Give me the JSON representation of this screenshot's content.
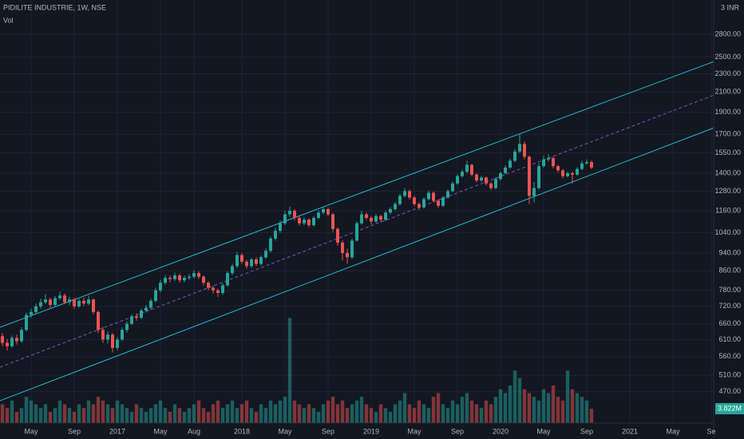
{
  "chart_data": {
    "type": "candlestick",
    "title": "PIDILITE INDUSTRIE, 1W, NSE",
    "volume_title": "Vol",
    "currency_label": "3 INR",
    "log_scale": true,
    "grid": true,
    "up_color": "#26a69a",
    "down_color": "#ef5350",
    "ylim": [
      402,
      3325
    ],
    "yticks": [
      {
        "value": 470,
        "label": "470.00"
      },
      {
        "value": 510,
        "label": "510.00"
      },
      {
        "value": 560,
        "label": "560.00"
      },
      {
        "value": 610,
        "label": "610.00"
      },
      {
        "value": 660,
        "label": "660.00"
      },
      {
        "value": 720,
        "label": "720.00"
      },
      {
        "value": 780,
        "label": "780.00"
      },
      {
        "value": 860,
        "label": "860.00"
      },
      {
        "value": 940,
        "label": "940.00"
      },
      {
        "value": 1040,
        "label": "1040.00"
      },
      {
        "value": 1160,
        "label": "1160.00"
      },
      {
        "value": 1280,
        "label": "1280.00"
      },
      {
        "value": 1400,
        "label": "1400.00"
      },
      {
        "value": 1550,
        "label": "1550.00"
      },
      {
        "value": 1700,
        "label": "1700.00"
      },
      {
        "value": 1900,
        "label": "1900.00"
      },
      {
        "value": 2100,
        "label": "2100.00"
      },
      {
        "value": 2300,
        "label": "2300.00"
      },
      {
        "value": 2500,
        "label": "2500.00"
      },
      {
        "value": 2800,
        "label": "2800.00"
      }
    ],
    "categories": [
      null,
      null,
      null,
      null,
      null,
      null,
      "May",
      null,
      null,
      null,
      null,
      null,
      null,
      null,
      null,
      "Sep",
      null,
      null,
      null,
      null,
      null,
      null,
      null,
      null,
      "2017",
      null,
      null,
      null,
      null,
      null,
      null,
      null,
      null,
      "May",
      null,
      null,
      null,
      null,
      null,
      null,
      "Aug",
      null,
      null,
      null,
      null,
      null,
      null,
      null,
      null,
      null,
      "2018",
      null,
      null,
      null,
      null,
      null,
      null,
      null,
      null,
      "May",
      null,
      null,
      null,
      null,
      null,
      null,
      null,
      null,
      "Sep",
      null,
      null,
      null,
      null,
      null,
      null,
      null,
      null,
      "2019",
      null,
      null,
      null,
      null,
      null,
      null,
      null,
      null,
      "May",
      null,
      null,
      null,
      null,
      null,
      null,
      null,
      null,
      "Sep",
      null,
      null,
      null,
      null,
      null,
      null,
      null,
      null,
      "2020",
      null,
      null,
      null,
      null,
      null,
      null,
      null,
      null,
      "May",
      null,
      null,
      null,
      null,
      null,
      null,
      null,
      null,
      "Sep",
      null,
      null,
      null,
      null,
      null,
      null,
      null,
      null,
      "2021",
      null,
      null,
      null,
      null,
      null,
      null,
      null,
      null,
      "May",
      null,
      null,
      null,
      null,
      null,
      null,
      null,
      "Se"
    ],
    "open": [
      620,
      600,
      590,
      615,
      605,
      640,
      690,
      700,
      720,
      735,
      745,
      725,
      750,
      760,
      735,
      745,
      720,
      740,
      730,
      745,
      700,
      640,
      610,
      625,
      585,
      610,
      640,
      660,
      685,
      680,
      705,
      715,
      740,
      780,
      810,
      830,
      825,
      840,
      820,
      830,
      835,
      850,
      835,
      810,
      790,
      780,
      770,
      800,
      850,
      880,
      930,
      900,
      880,
      910,
      890,
      920,
      950,
      1010,
      1050,
      1090,
      1140,
      1160,
      1120,
      1090,
      1110,
      1080,
      1120,
      1150,
      1170,
      1140,
      1060,
      990,
      940,
      920,
      1000,
      1090,
      1140,
      1120,
      1100,
      1130,
      1110,
      1150,
      1170,
      1200,
      1250,
      1280,
      1240,
      1200,
      1180,
      1230,
      1270,
      1220,
      1190,
      1240,
      1280,
      1330,
      1380,
      1410,
      1460,
      1390,
      1350,
      1370,
      1330,
      1300,
      1360,
      1400,
      1440,
      1490,
      1560,
      1620,
      1520,
      1250,
      1300,
      1450,
      1500,
      1510,
      1450,
      1420,
      1380,
      1400,
      1390,
      1430,
      1470,
      1480,
      null,
      null,
      null,
      null,
      null,
      null,
      null,
      null,
      null,
      null,
      null,
      null,
      null,
      null,
      null,
      null,
      null,
      null,
      null,
      null,
      null,
      null,
      null,
      null,
      null
    ],
    "high": [
      630,
      612,
      622,
      625,
      648,
      698,
      712,
      730,
      748,
      765,
      752,
      758,
      775,
      768,
      755,
      750,
      748,
      752,
      760,
      748,
      705,
      650,
      635,
      630,
      618,
      648,
      668,
      692,
      695,
      712,
      725,
      748,
      790,
      822,
      842,
      840,
      852,
      848,
      840,
      846,
      862,
      858,
      840,
      816,
      798,
      786,
      808,
      858,
      892,
      945,
      940,
      908,
      918,
      920,
      928,
      962,
      1020,
      1065,
      1105,
      1160,
      1185,
      1170,
      1128,
      1122,
      1118,
      1130,
      1162,
      1185,
      1178,
      1148,
      1068,
      1000,
      960,
      1010,
      1100,
      1160,
      1150,
      1130,
      1142,
      1138,
      1160,
      1182,
      1212,
      1262,
      1300,
      1290,
      1250,
      1210,
      1240,
      1285,
      1278,
      1228,
      1250,
      1292,
      1342,
      1392,
      1425,
      1490,
      1468,
      1400,
      1382,
      1378,
      1340,
      1372,
      1412,
      1455,
      1505,
      1580,
      1700,
      1640,
      1530,
      1340,
      1470,
      1530,
      1540,
      1520,
      1462,
      1430,
      1412,
      1412,
      1442,
      1490,
      1500,
      1490,
      null,
      null,
      null,
      null,
      null,
      null,
      null,
      null,
      null,
      null,
      null,
      null,
      null,
      null,
      null,
      null,
      null,
      null,
      null,
      null,
      null,
      null,
      null,
      null,
      null
    ],
    "low": [
      590,
      578,
      585,
      595,
      600,
      635,
      680,
      692,
      712,
      728,
      715,
      720,
      742,
      728,
      725,
      712,
      715,
      722,
      725,
      692,
      630,
      600,
      598,
      572,
      578,
      605,
      632,
      655,
      670,
      675,
      698,
      708,
      735,
      772,
      802,
      812,
      818,
      810,
      812,
      822,
      828,
      826,
      800,
      780,
      768,
      755,
      762,
      795,
      842,
      872,
      890,
      870,
      872,
      880,
      882,
      912,
      942,
      1000,
      1040,
      1080,
      1125,
      1105,
      1078,
      1080,
      1068,
      1072,
      1112,
      1140,
      1130,
      1045,
      975,
      905,
      890,
      912,
      995,
      1082,
      1108,
      1085,
      1092,
      1098,
      1102,
      1140,
      1162,
      1192,
      1240,
      1228,
      1188,
      1165,
      1172,
      1222,
      1210,
      1178,
      1182,
      1232,
      1272,
      1322,
      1370,
      1400,
      1378,
      1338,
      1340,
      1318,
      1288,
      1292,
      1350,
      1392,
      1430,
      1480,
      1548,
      1500,
      1200,
      1210,
      1290,
      1440,
      1485,
      1435,
      1405,
      1365,
      1370,
      1330,
      1382,
      1420,
      1462,
      1428,
      null,
      null,
      null,
      null,
      null,
      null,
      null,
      null,
      null,
      null,
      null,
      null,
      null,
      null,
      null,
      null,
      null,
      null,
      null,
      null,
      null,
      null,
      null,
      null,
      null
    ],
    "close": [
      600,
      590,
      615,
      605,
      640,
      690,
      700,
      720,
      735,
      745,
      725,
      750,
      760,
      735,
      745,
      720,
      740,
      730,
      745,
      700,
      640,
      610,
      625,
      585,
      610,
      640,
      660,
      685,
      680,
      705,
      715,
      740,
      780,
      810,
      830,
      825,
      840,
      820,
      830,
      835,
      850,
      835,
      810,
      790,
      780,
      770,
      800,
      850,
      880,
      930,
      900,
      880,
      910,
      890,
      920,
      950,
      1010,
      1050,
      1090,
      1140,
      1160,
      1120,
      1090,
      1110,
      1080,
      1120,
      1150,
      1170,
      1140,
      1060,
      990,
      940,
      920,
      1000,
      1090,
      1140,
      1120,
      1100,
      1130,
      1110,
      1150,
      1170,
      1200,
      1250,
      1280,
      1240,
      1200,
      1180,
      1230,
      1270,
      1220,
      1190,
      1240,
      1280,
      1330,
      1380,
      1410,
      1460,
      1390,
      1350,
      1370,
      1330,
      1300,
      1360,
      1400,
      1440,
      1490,
      1560,
      1620,
      1520,
      1250,
      1300,
      1450,
      1500,
      1510,
      1450,
      1420,
      1380,
      1400,
      1390,
      1430,
      1470,
      1480,
      1440,
      null,
      null,
      null,
      null,
      null,
      null,
      null,
      null,
      null,
      null,
      null,
      null,
      null,
      null,
      null,
      null,
      null,
      null,
      null,
      null,
      null,
      null,
      null,
      null,
      null
    ],
    "volume": [
      5,
      4,
      6,
      3,
      4,
      7,
      6,
      5,
      4,
      5,
      3,
      4,
      6,
      5,
      4,
      3,
      5,
      4,
      6,
      5,
      7,
      6,
      5,
      4,
      6,
      5,
      4,
      3,
      5,
      4,
      3,
      4,
      5,
      6,
      4,
      3,
      5,
      4,
      3,
      4,
      5,
      6,
      4,
      3,
      5,
      6,
      4,
      5,
      6,
      4,
      5,
      6,
      4,
      3,
      5,
      4,
      6,
      5,
      6,
      7,
      28,
      6,
      5,
      4,
      5,
      4,
      3,
      5,
      6,
      7,
      5,
      6,
      4,
      5,
      6,
      7,
      5,
      4,
      3,
      5,
      4,
      3,
      5,
      6,
      8,
      5,
      4,
      6,
      5,
      4,
      7,
      8,
      5,
      4,
      6,
      5,
      7,
      8,
      6,
      5,
      4,
      6,
      5,
      7,
      9,
      8,
      10,
      14,
      12,
      9,
      8,
      7,
      6,
      9,
      8,
      10,
      7,
      6,
      14,
      9,
      8,
      7,
      6,
      3.822,
      null,
      null,
      null,
      null,
      null,
      null,
      null,
      null,
      null,
      null,
      null,
      null,
      null,
      null,
      null,
      null,
      null,
      null,
      null,
      null,
      null,
      null,
      null,
      null,
      null
    ],
    "volume_label": "3.822M"
  }
}
